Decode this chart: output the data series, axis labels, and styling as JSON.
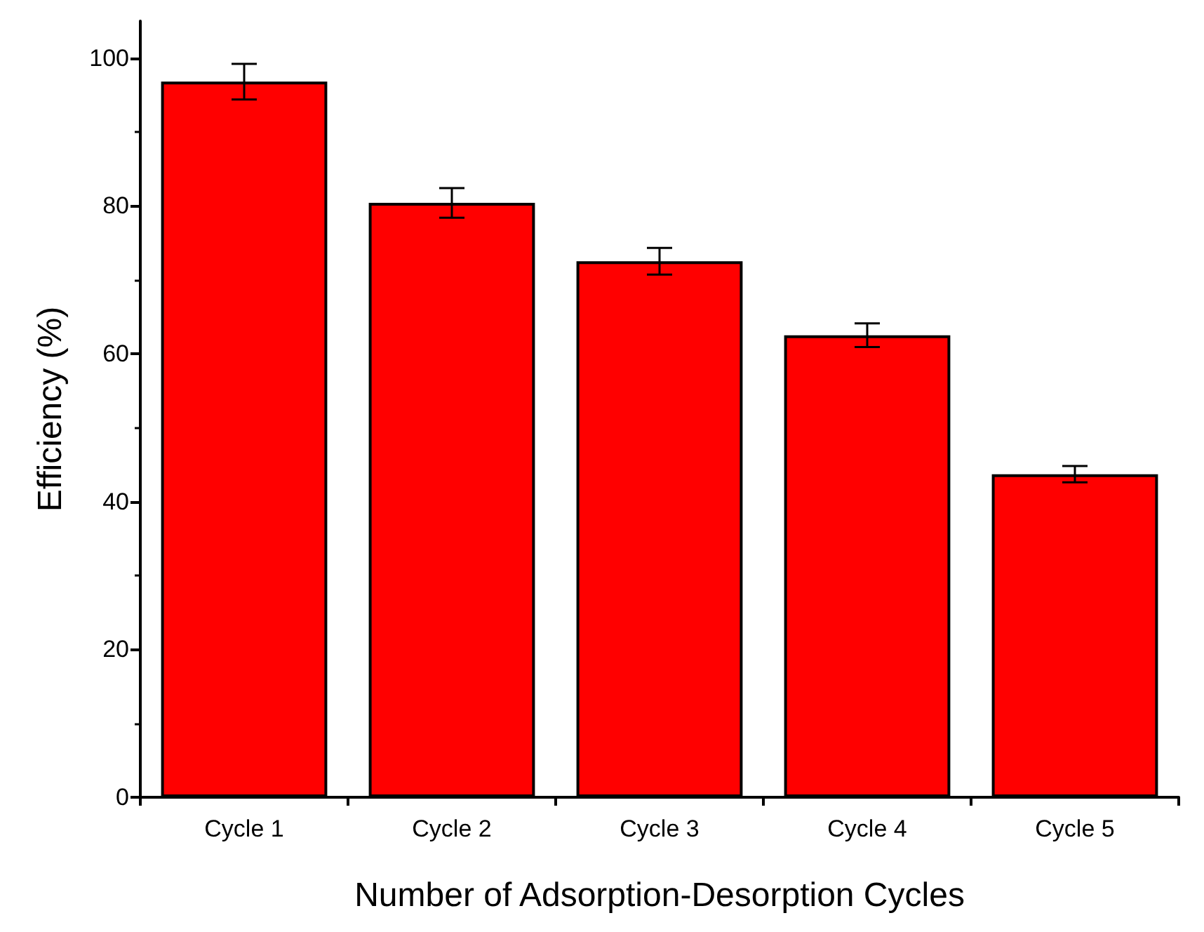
{
  "chart_data": {
    "type": "bar",
    "xlabel": "Number of Adsorption-Desorption Cycles",
    "ylabel": "Efficiency (%)",
    "categories": [
      "Cycle 1",
      "Cycle 2",
      "Cycle 3",
      "Cycle 4",
      "Cycle 5"
    ],
    "values": [
      96.8,
      80.4,
      72.5,
      62.5,
      43.7
    ],
    "errors": [
      2.4,
      2.0,
      1.8,
      1.6,
      1.1
    ],
    "color": "#ff0000",
    "ylim": [
      0,
      105
    ],
    "yticks": [
      0,
      20,
      40,
      60,
      80,
      100
    ],
    "grid": false
  }
}
